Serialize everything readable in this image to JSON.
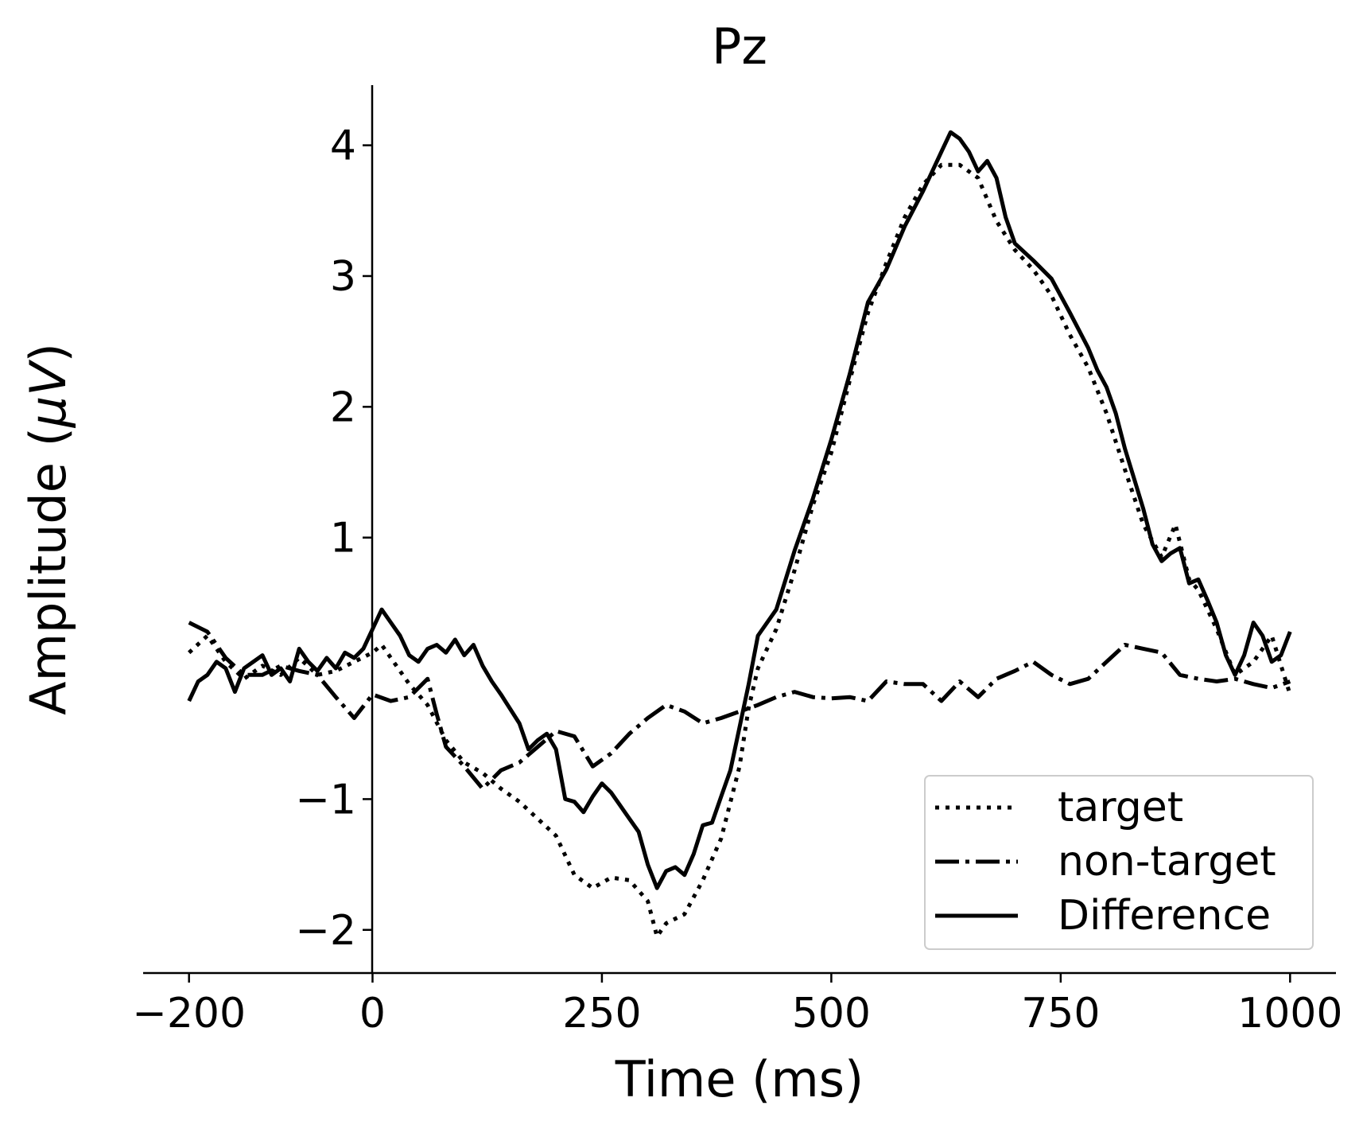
{
  "chart_data": {
    "type": "line",
    "title": "Pz",
    "xlabel": "Time (ms)",
    "ylabel_main": "Amplitude (",
    "ylabel_unit": "μV",
    "ylabel_close": ")",
    "xlim": [
      -250,
      1050
    ],
    "ylim": [
      -2.33,
      4.46
    ],
    "xticks": [
      -200,
      0,
      250,
      500,
      750,
      1000
    ],
    "yticks": [
      -2,
      -1,
      1,
      2,
      3,
      4
    ],
    "xtick_labels": [
      "−200",
      "0",
      "250",
      "500",
      "750",
      "1000"
    ],
    "ytick_labels": [
      "−2",
      "−1",
      "1",
      "2",
      "3",
      "4"
    ],
    "legend_position": "lower-right",
    "colors": {
      "line": "#000000",
      "legend_border": "#cccccc",
      "background": "#ffffff"
    },
    "series": [
      {
        "name": "target",
        "style": "dotted",
        "points": [
          [
            -200,
            0.12
          ],
          [
            -180,
            0.25
          ],
          [
            -160,
            0.05
          ],
          [
            -140,
            -0.08
          ],
          [
            -120,
            0.02
          ],
          [
            -100,
            -0.05
          ],
          [
            -80,
            0.08
          ],
          [
            -60,
            -0.05
          ],
          [
            -40,
            -0.02
          ],
          [
            -20,
            0.05
          ],
          [
            0,
            0.12
          ],
          [
            10,
            0.18
          ],
          [
            20,
            0.08
          ],
          [
            40,
            -0.12
          ],
          [
            60,
            -0.28
          ],
          [
            80,
            -0.55
          ],
          [
            100,
            -0.72
          ],
          [
            120,
            -0.8
          ],
          [
            140,
            -0.92
          ],
          [
            160,
            -1.02
          ],
          [
            180,
            -1.15
          ],
          [
            200,
            -1.28
          ],
          [
            220,
            -1.58
          ],
          [
            240,
            -1.68
          ],
          [
            260,
            -1.6
          ],
          [
            280,
            -1.62
          ],
          [
            300,
            -1.78
          ],
          [
            310,
            -2.05
          ],
          [
            320,
            -1.95
          ],
          [
            340,
            -1.88
          ],
          [
            360,
            -1.62
          ],
          [
            380,
            -1.3
          ],
          [
            400,
            -0.75
          ],
          [
            410,
            -0.3
          ],
          [
            420,
            0.0
          ],
          [
            440,
            0.3
          ],
          [
            460,
            0.75
          ],
          [
            480,
            1.25
          ],
          [
            500,
            1.65
          ],
          [
            520,
            2.2
          ],
          [
            540,
            2.72
          ],
          [
            560,
            3.1
          ],
          [
            580,
            3.45
          ],
          [
            600,
            3.7
          ],
          [
            620,
            3.85
          ],
          [
            640,
            3.85
          ],
          [
            660,
            3.75
          ],
          [
            680,
            3.42
          ],
          [
            700,
            3.2
          ],
          [
            720,
            3.05
          ],
          [
            740,
            2.85
          ],
          [
            760,
            2.55
          ],
          [
            780,
            2.3
          ],
          [
            800,
            1.95
          ],
          [
            820,
            1.52
          ],
          [
            840,
            1.1
          ],
          [
            860,
            0.85
          ],
          [
            875,
            1.1
          ],
          [
            890,
            0.68
          ],
          [
            900,
            0.6
          ],
          [
            920,
            0.3
          ],
          [
            940,
            -0.05
          ],
          [
            960,
            0.05
          ],
          [
            980,
            0.25
          ],
          [
            1000,
            -0.2
          ]
        ]
      },
      {
        "name": "non-target",
        "style": "dashdot",
        "points": [
          [
            -200,
            0.35
          ],
          [
            -180,
            0.28
          ],
          [
            -160,
            0.08
          ],
          [
            -140,
            -0.05
          ],
          [
            -120,
            -0.05
          ],
          [
            -100,
            0.02
          ],
          [
            -80,
            -0.02
          ],
          [
            -60,
            -0.05
          ],
          [
            -40,
            -0.22
          ],
          [
            -20,
            -0.38
          ],
          [
            0,
            -0.2
          ],
          [
            20,
            -0.25
          ],
          [
            40,
            -0.22
          ],
          [
            60,
            -0.08
          ],
          [
            70,
            -0.35
          ],
          [
            80,
            -0.6
          ],
          [
            100,
            -0.75
          ],
          [
            120,
            -0.92
          ],
          [
            140,
            -0.78
          ],
          [
            160,
            -0.72
          ],
          [
            180,
            -0.6
          ],
          [
            200,
            -0.48
          ],
          [
            220,
            -0.52
          ],
          [
            240,
            -0.75
          ],
          [
            260,
            -0.65
          ],
          [
            280,
            -0.5
          ],
          [
            300,
            -0.38
          ],
          [
            320,
            -0.28
          ],
          [
            340,
            -0.33
          ],
          [
            360,
            -0.42
          ],
          [
            380,
            -0.38
          ],
          [
            400,
            -0.33
          ],
          [
            420,
            -0.28
          ],
          [
            440,
            -0.22
          ],
          [
            460,
            -0.18
          ],
          [
            480,
            -0.22
          ],
          [
            500,
            -0.23
          ],
          [
            520,
            -0.22
          ],
          [
            540,
            -0.25
          ],
          [
            560,
            -0.1
          ],
          [
            580,
            -0.12
          ],
          [
            600,
            -0.12
          ],
          [
            620,
            -0.25
          ],
          [
            640,
            -0.1
          ],
          [
            660,
            -0.22
          ],
          [
            680,
            -0.08
          ],
          [
            700,
            -0.02
          ],
          [
            720,
            0.05
          ],
          [
            740,
            -0.05
          ],
          [
            760,
            -0.12
          ],
          [
            780,
            -0.08
          ],
          [
            800,
            0.05
          ],
          [
            820,
            0.18
          ],
          [
            840,
            0.15
          ],
          [
            860,
            0.12
          ],
          [
            880,
            -0.05
          ],
          [
            900,
            -0.08
          ],
          [
            920,
            -0.1
          ],
          [
            940,
            -0.08
          ],
          [
            960,
            -0.12
          ],
          [
            980,
            -0.15
          ],
          [
            1000,
            -0.1
          ]
        ]
      },
      {
        "name": "Difference",
        "style": "solid",
        "points": [
          [
            -200,
            -0.25
          ],
          [
            -190,
            -0.1
          ],
          [
            -180,
            -0.05
          ],
          [
            -170,
            0.05
          ],
          [
            -160,
            0.0
          ],
          [
            -150,
            -0.18
          ],
          [
            -140,
            0.0
          ],
          [
            -130,
            0.05
          ],
          [
            -120,
            0.1
          ],
          [
            -110,
            -0.05
          ],
          [
            -100,
            0.0
          ],
          [
            -90,
            -0.1
          ],
          [
            -80,
            0.15
          ],
          [
            -70,
            0.05
          ],
          [
            -60,
            -0.02
          ],
          [
            -50,
            0.08
          ],
          [
            -40,
            0.0
          ],
          [
            -30,
            0.12
          ],
          [
            -20,
            0.08
          ],
          [
            -10,
            0.15
          ],
          [
            0,
            0.3
          ],
          [
            10,
            0.45
          ],
          [
            20,
            0.35
          ],
          [
            30,
            0.25
          ],
          [
            40,
            0.1
          ],
          [
            50,
            0.05
          ],
          [
            60,
            0.15
          ],
          [
            70,
            0.18
          ],
          [
            80,
            0.12
          ],
          [
            90,
            0.22
          ],
          [
            100,
            0.1
          ],
          [
            110,
            0.18
          ],
          [
            120,
            0.02
          ],
          [
            130,
            -0.1
          ],
          [
            140,
            -0.2
          ],
          [
            160,
            -0.42
          ],
          [
            170,
            -0.62
          ],
          [
            180,
            -0.55
          ],
          [
            190,
            -0.5
          ],
          [
            200,
            -0.62
          ],
          [
            210,
            -1.0
          ],
          [
            220,
            -1.02
          ],
          [
            230,
            -1.1
          ],
          [
            240,
            -0.98
          ],
          [
            250,
            -0.88
          ],
          [
            260,
            -0.95
          ],
          [
            270,
            -1.05
          ],
          [
            280,
            -1.15
          ],
          [
            290,
            -1.25
          ],
          [
            300,
            -1.5
          ],
          [
            310,
            -1.68
          ],
          [
            320,
            -1.55
          ],
          [
            330,
            -1.52
          ],
          [
            340,
            -1.58
          ],
          [
            350,
            -1.42
          ],
          [
            360,
            -1.2
          ],
          [
            370,
            -1.18
          ],
          [
            380,
            -0.98
          ],
          [
            390,
            -0.78
          ],
          [
            400,
            -0.45
          ],
          [
            410,
            -0.12
          ],
          [
            420,
            0.25
          ],
          [
            440,
            0.45
          ],
          [
            460,
            0.9
          ],
          [
            480,
            1.3
          ],
          [
            500,
            1.75
          ],
          [
            520,
            2.25
          ],
          [
            540,
            2.8
          ],
          [
            560,
            3.05
          ],
          [
            580,
            3.38
          ],
          [
            600,
            3.65
          ],
          [
            620,
            3.95
          ],
          [
            630,
            4.1
          ],
          [
            640,
            4.05
          ],
          [
            650,
            3.95
          ],
          [
            660,
            3.8
          ],
          [
            670,
            3.88
          ],
          [
            680,
            3.75
          ],
          [
            690,
            3.45
          ],
          [
            700,
            3.25
          ],
          [
            720,
            3.12
          ],
          [
            740,
            2.98
          ],
          [
            760,
            2.72
          ],
          [
            780,
            2.45
          ],
          [
            790,
            2.28
          ],
          [
            800,
            2.15
          ],
          [
            810,
            1.95
          ],
          [
            820,
            1.68
          ],
          [
            830,
            1.45
          ],
          [
            840,
            1.22
          ],
          [
            850,
            0.95
          ],
          [
            860,
            0.82
          ],
          [
            870,
            0.88
          ],
          [
            880,
            0.92
          ],
          [
            890,
            0.65
          ],
          [
            900,
            0.68
          ],
          [
            910,
            0.52
          ],
          [
            920,
            0.35
          ],
          [
            930,
            0.1
          ],
          [
            940,
            -0.05
          ],
          [
            950,
            0.1
          ],
          [
            960,
            0.35
          ],
          [
            970,
            0.25
          ],
          [
            980,
            0.05
          ],
          [
            990,
            0.1
          ],
          [
            1000,
            0.28
          ]
        ]
      }
    ]
  }
}
